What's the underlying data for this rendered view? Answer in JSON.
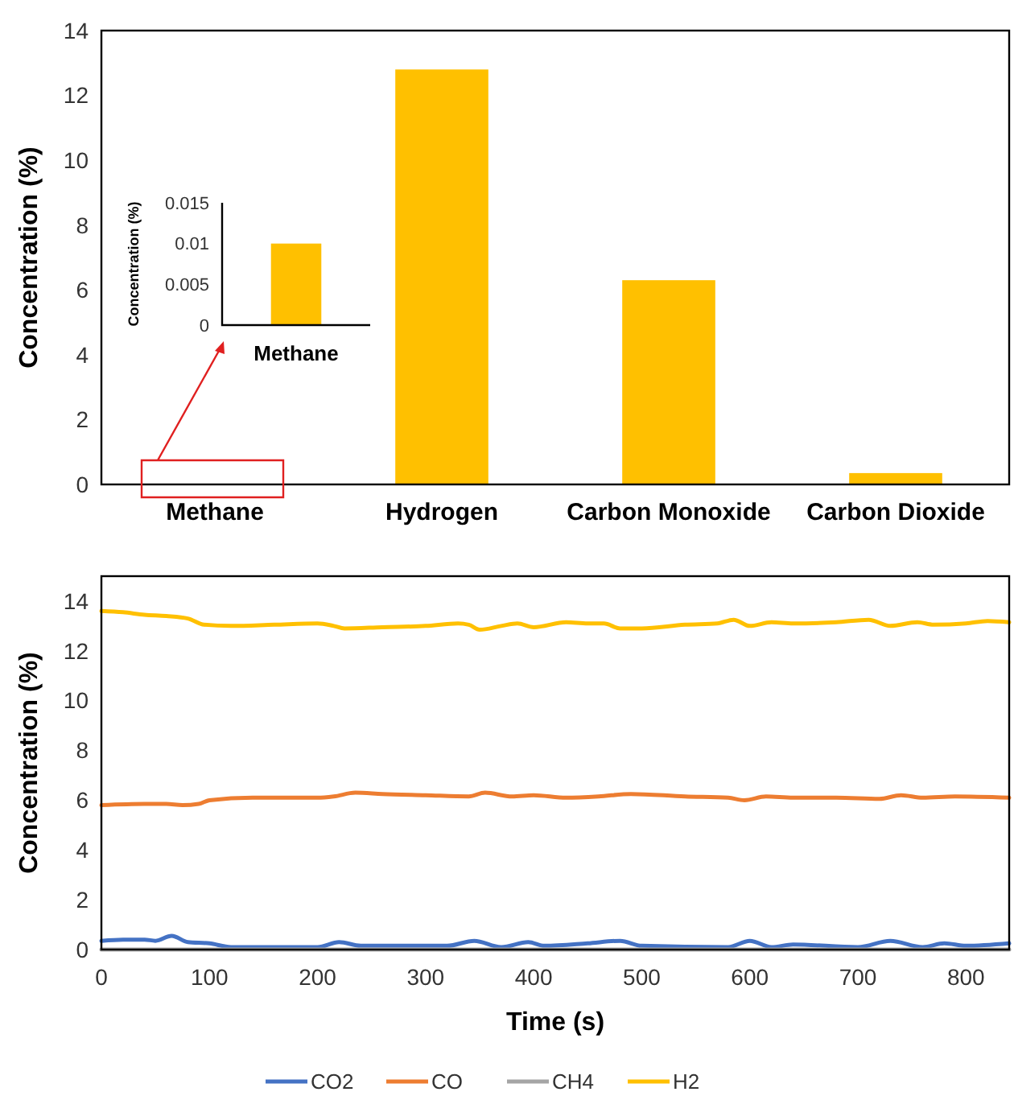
{
  "chart_data": [
    {
      "type": "bar",
      "categories": [
        "Methane",
        "Hydrogen",
        "Carbon Monoxide",
        "Carbon Dioxide"
      ],
      "values": [
        null,
        12.8,
        6.3,
        0.35
      ],
      "color": "#ffc000",
      "ylabel": "Concentration (%)",
      "ylim": [
        0,
        14
      ],
      "yticks": [
        0,
        2,
        4,
        6,
        8,
        10,
        12,
        14
      ]
    },
    {
      "type": "bar",
      "categories": [
        "Methane"
      ],
      "values": [
        0.01
      ],
      "color": "#ffc000",
      "ylabel": "Concentration (%)",
      "ylim": [
        0,
        0.015
      ],
      "yticks": [
        0,
        0.005,
        0.01,
        0.015
      ]
    },
    {
      "type": "line",
      "xlabel": "Time (s)",
      "ylabel": "Concentration (%)",
      "xlim": [
        0,
        840
      ],
      "xticks": [
        0,
        100,
        200,
        300,
        400,
        500,
        600,
        700,
        800
      ],
      "ylim": [
        0,
        15
      ],
      "yticks": [
        0,
        2,
        4,
        6,
        8,
        10,
        12,
        14
      ],
      "legend": "bottom",
      "series": [
        {
          "name": "CO2",
          "color": "#4472c4",
          "x": [
            0,
            20,
            40,
            50,
            65,
            80,
            100,
            120,
            200,
            220,
            240,
            320,
            345,
            370,
            395,
            410,
            450,
            480,
            500,
            580,
            600,
            620,
            640,
            700,
            730,
            760,
            780,
            800,
            840
          ],
          "values": [
            0.35,
            0.4,
            0.4,
            0.35,
            0.55,
            0.3,
            0.25,
            0.1,
            0.1,
            0.3,
            0.15,
            0.15,
            0.35,
            0.1,
            0.3,
            0.15,
            0.25,
            0.35,
            0.15,
            0.1,
            0.35,
            0.1,
            0.2,
            0.1,
            0.35,
            0.1,
            0.25,
            0.15,
            0.25
          ]
        },
        {
          "name": "CO",
          "color": "#ed7d31",
          "x": [
            0,
            40,
            60,
            75,
            90,
            100,
            140,
            200,
            215,
            235,
            260,
            300,
            340,
            355,
            380,
            400,
            430,
            460,
            490,
            540,
            580,
            595,
            615,
            640,
            680,
            720,
            740,
            760,
            790,
            840
          ],
          "values": [
            5.8,
            5.85,
            5.85,
            5.8,
            5.85,
            6.0,
            6.1,
            6.1,
            6.15,
            6.3,
            6.25,
            6.2,
            6.15,
            6.3,
            6.15,
            6.2,
            6.1,
            6.15,
            6.25,
            6.15,
            6.1,
            6.0,
            6.15,
            6.1,
            6.1,
            6.05,
            6.2,
            6.1,
            6.15,
            6.1
          ]
        },
        {
          "name": "CH4",
          "color": "#a5a5a5",
          "x": [
            0,
            840
          ],
          "values": [
            0,
            0
          ]
        },
        {
          "name": "H2",
          "color": "#ffc000",
          "x": [
            0,
            20,
            40,
            60,
            80,
            95,
            120,
            160,
            200,
            215,
            225,
            260,
            300,
            330,
            340,
            350,
            370,
            385,
            400,
            430,
            450,
            465,
            480,
            500,
            540,
            570,
            585,
            600,
            620,
            640,
            680,
            710,
            730,
            755,
            770,
            800,
            820,
            840
          ],
          "values": [
            13.6,
            13.55,
            13.45,
            13.4,
            13.3,
            13.05,
            13.0,
            13.05,
            13.1,
            13.0,
            12.9,
            12.95,
            13.0,
            13.1,
            13.05,
            12.85,
            13.0,
            13.1,
            12.95,
            13.15,
            13.1,
            13.1,
            12.9,
            12.9,
            13.05,
            13.1,
            13.25,
            13.0,
            13.15,
            13.1,
            13.15,
            13.25,
            13.0,
            13.15,
            13.05,
            13.1,
            13.2,
            13.15
          ]
        }
      ]
    }
  ]
}
